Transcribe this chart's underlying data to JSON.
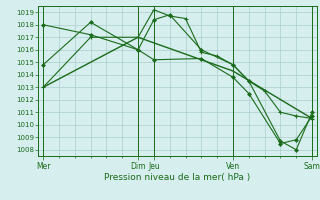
{
  "title": "",
  "xlabel": "Pression niveau de la mer( hPa )",
  "ylim": [
    1007.5,
    1019.5
  ],
  "yticks": [
    1008,
    1009,
    1010,
    1011,
    1012,
    1013,
    1014,
    1015,
    1016,
    1017,
    1018,
    1019
  ],
  "bg_color": "#d6eeee",
  "line_color": "#1a6b1a",
  "grid_color": "#aacccc",
  "vline_positions": [
    0,
    6,
    7,
    12,
    17
  ],
  "series": [
    {
      "x": [
        0,
        3,
        6,
        7,
        8,
        9,
        10,
        11,
        12,
        13,
        14,
        15,
        16,
        17
      ],
      "y": [
        1013.0,
        1017.0,
        1017.0,
        1019.2,
        1018.7,
        1018.5,
        1015.8,
        1015.5,
        1014.8,
        1013.5,
        1012.7,
        1011.0,
        1010.7,
        1010.5
      ],
      "marker": "+"
    },
    {
      "x": [
        0,
        3,
        6,
        7,
        8,
        10,
        12,
        13,
        15,
        16,
        17
      ],
      "y": [
        1018.0,
        1017.2,
        1016.0,
        1018.4,
        1018.8,
        1016.0,
        1014.8,
        1013.5,
        1008.7,
        1008.0,
        1011.0
      ],
      "marker": "D"
    },
    {
      "x": [
        0,
        3,
        6,
        7,
        10,
        12,
        13,
        15,
        16,
        17
      ],
      "y": [
        1014.8,
        1018.2,
        1016.0,
        1015.2,
        1015.3,
        1013.8,
        1012.5,
        1008.5,
        1008.8,
        1010.7
      ],
      "marker": "D"
    },
    {
      "x": [
        0,
        6,
        12,
        17
      ],
      "y": [
        1013.0,
        1017.0,
        1014.3,
        1010.5
      ],
      "marker": null
    }
  ],
  "xtick_positions": [
    0,
    6,
    7,
    12,
    17
  ],
  "xtick_labels": [
    "Mer",
    "Dim",
    "Jeu",
    "Ven",
    "Sam"
  ]
}
